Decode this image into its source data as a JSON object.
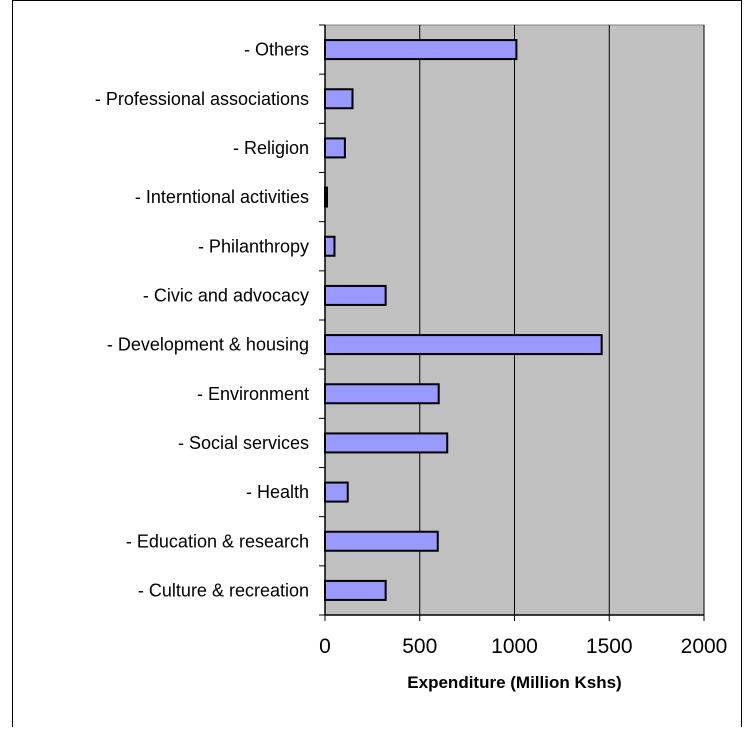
{
  "chart_data": {
    "type": "bar",
    "orientation": "horizontal",
    "categories": [
      "- Culture & recreation",
      "- Education & research",
      "- Health",
      "- Social services",
      "- Environment",
      "- Development & housing",
      "- Civic and advocacy",
      "- Philanthropy",
      "- Interntional activities",
      "- Religion",
      "- Professional associations",
      "- Others"
    ],
    "values": [
      320,
      595,
      120,
      645,
      600,
      1460,
      320,
      50,
      10,
      105,
      145,
      1010
    ],
    "xlabel": "Expenditure (Million Kshs)",
    "ylabel": "",
    "xlim": [
      0,
      2000
    ],
    "xticks": [
      "0",
      "500",
      "1000",
      "1500",
      "2000"
    ],
    "grid": "vertical",
    "plot_background": "#c0c0c0",
    "bar_color": "#9999ff",
    "bar_edge_color": "#000000"
  }
}
